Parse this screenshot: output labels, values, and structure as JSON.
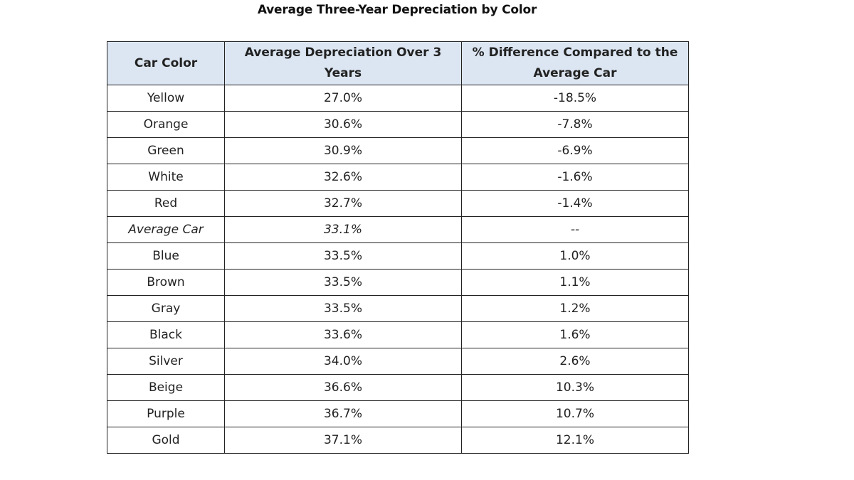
{
  "title": "Average Three-Year Depreciation by Color",
  "table": {
    "headers": [
      "Car Color",
      "Average Depreciation Over 3 Years",
      "% Difference Compared to the Average Car"
    ],
    "rows": [
      {
        "color": "Yellow",
        "depreciation": "27.0%",
        "difference": "-18.5%"
      },
      {
        "color": "Orange",
        "depreciation": "30.6%",
        "difference": "-7.8%"
      },
      {
        "color": "Green",
        "depreciation": "30.9%",
        "difference": "-6.9%"
      },
      {
        "color": "White",
        "depreciation": "32.6%",
        "difference": "-1.6%"
      },
      {
        "color": "Red",
        "depreciation": "32.7%",
        "difference": "-1.4%"
      },
      {
        "color": "Average Car",
        "depreciation": "33.1%",
        "difference": "--",
        "emphasis": "italic"
      },
      {
        "color": "Blue",
        "depreciation": "33.5%",
        "difference": "1.0%"
      },
      {
        "color": "Brown",
        "depreciation": "33.5%",
        "difference": "1.1%"
      },
      {
        "color": "Gray",
        "depreciation": "33.5%",
        "difference": "1.2%"
      },
      {
        "color": "Black",
        "depreciation": "33.6%",
        "difference": "1.6%"
      },
      {
        "color": "Silver",
        "depreciation": "34.0%",
        "difference": "2.6%"
      },
      {
        "color": "Beige",
        "depreciation": "36.6%",
        "difference": "10.3%"
      },
      {
        "color": "Purple",
        "depreciation": "36.7%",
        "difference": "10.7%"
      },
      {
        "color": "Gold",
        "depreciation": "37.1%",
        "difference": "12.1%"
      }
    ]
  },
  "colors": {
    "header_background": "#dce6f2",
    "border": "#222222"
  }
}
